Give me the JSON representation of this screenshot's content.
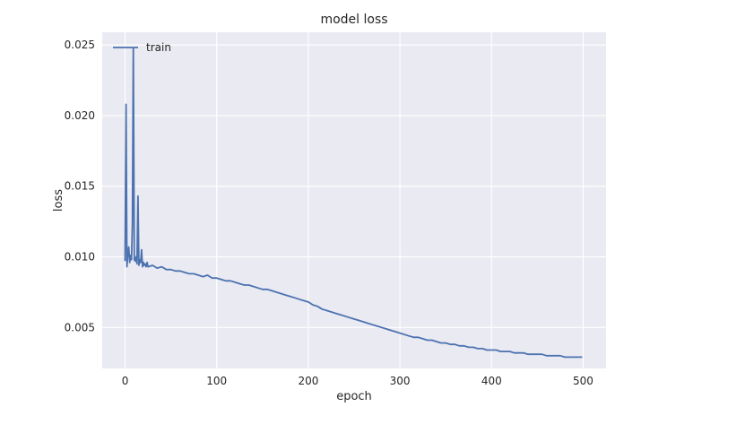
{
  "chart_data": {
    "type": "line",
    "title": "model loss",
    "xlabel": "epoch",
    "ylabel": "loss",
    "xlim": [
      -25,
      525
    ],
    "ylim": [
      0.0021,
      0.0259
    ],
    "xticks": [
      0,
      100,
      200,
      300,
      400,
      500
    ],
    "xtick_labels": [
      "0",
      "100",
      "200",
      "300",
      "400",
      "500"
    ],
    "yticks": [
      0.005,
      0.01,
      0.015,
      0.02,
      0.025
    ],
    "ytick_labels": [
      "0.005",
      "0.010",
      "0.015",
      "0.020",
      "0.025"
    ],
    "grid": true,
    "legend_position": "upper-left",
    "colors": {
      "background": "#EAEAF2",
      "grid": "#FFFFFF",
      "line": "#4C72B0"
    },
    "series": [
      {
        "name": "train",
        "x": [
          0,
          1,
          2,
          3,
          4,
          5,
          6,
          7,
          8,
          9,
          10,
          11,
          12,
          13,
          14,
          15,
          16,
          17,
          18,
          19,
          20,
          21,
          22,
          23,
          24,
          25,
          30,
          35,
          40,
          45,
          50,
          55,
          60,
          65,
          70,
          75,
          80,
          85,
          90,
          95,
          100,
          105,
          110,
          115,
          120,
          125,
          130,
          135,
          140,
          145,
          150,
          155,
          160,
          165,
          170,
          175,
          180,
          185,
          190,
          195,
          200,
          205,
          210,
          215,
          220,
          225,
          230,
          235,
          240,
          245,
          250,
          255,
          260,
          265,
          270,
          275,
          280,
          285,
          290,
          295,
          300,
          305,
          310,
          315,
          320,
          325,
          330,
          335,
          340,
          345,
          350,
          355,
          360,
          365,
          370,
          375,
          380,
          385,
          390,
          395,
          400,
          405,
          410,
          415,
          420,
          425,
          430,
          435,
          440,
          445,
          450,
          455,
          460,
          465,
          470,
          475,
          480,
          485,
          490,
          495,
          499
        ],
        "values": [
          0.0097,
          0.0208,
          0.0093,
          0.0102,
          0.0107,
          0.0096,
          0.0101,
          0.0098,
          0.0124,
          0.0248,
          0.0098,
          0.0097,
          0.01,
          0.0095,
          0.0143,
          0.0094,
          0.0098,
          0.0096,
          0.0105,
          0.0093,
          0.0096,
          0.0094,
          0.0095,
          0.0093,
          0.0096,
          0.0093,
          0.0094,
          0.0092,
          0.0093,
          0.0091,
          0.0091,
          0.009,
          0.009,
          0.0089,
          0.0088,
          0.0088,
          0.0087,
          0.0086,
          0.0087,
          0.0085,
          0.0085,
          0.0084,
          0.0083,
          0.0083,
          0.0082,
          0.0081,
          0.008,
          0.008,
          0.0079,
          0.0078,
          0.0077,
          0.0077,
          0.0076,
          0.0075,
          0.0074,
          0.0073,
          0.0072,
          0.0071,
          0.007,
          0.0069,
          0.0068,
          0.0066,
          0.0065,
          0.0063,
          0.0062,
          0.0061,
          0.006,
          0.0059,
          0.0058,
          0.0057,
          0.0056,
          0.0055,
          0.0054,
          0.0053,
          0.0052,
          0.0051,
          0.005,
          0.0049,
          0.0048,
          0.0047,
          0.0046,
          0.0045,
          0.0044,
          0.0043,
          0.0043,
          0.0042,
          0.0041,
          0.0041,
          0.004,
          0.0039,
          0.0039,
          0.0038,
          0.0038,
          0.0037,
          0.0037,
          0.0036,
          0.0036,
          0.0035,
          0.0035,
          0.0034,
          0.0034,
          0.0034,
          0.0033,
          0.0033,
          0.0033,
          0.0032,
          0.0032,
          0.0032,
          0.0031,
          0.0031,
          0.0031,
          0.0031,
          0.003,
          0.003,
          0.003,
          0.003,
          0.0029,
          0.0029,
          0.0029,
          0.0029,
          0.0029
        ]
      }
    ]
  }
}
